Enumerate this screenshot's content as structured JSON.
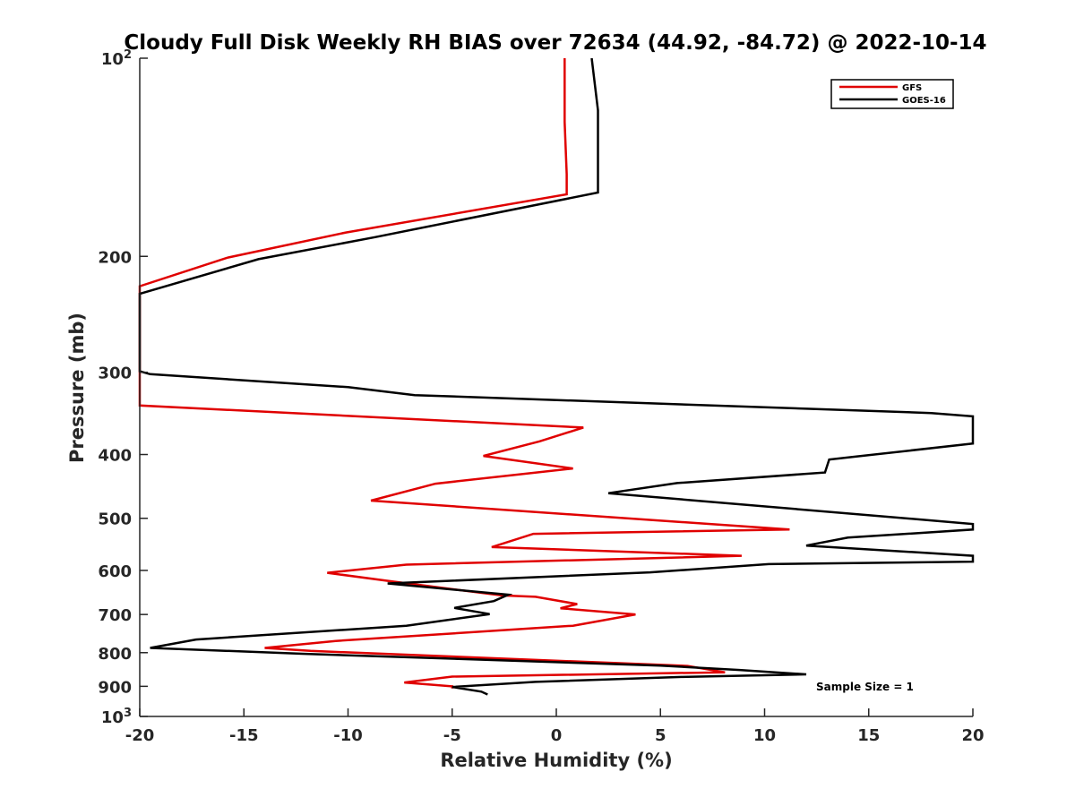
{
  "chart_data": {
    "type": "line",
    "title": "Cloudy Full Disk Weekly RH BIAS over 72634 (44.92, -84.72) @ 2022-10-14",
    "xlabel": "Relative Humidity (%)",
    "ylabel": "Pressure (mb)",
    "xlim": [
      -20,
      20
    ],
    "ylim": [
      100,
      1000
    ],
    "y_scale": "log",
    "y_reversed": true,
    "x_ticks": [
      "-20",
      "-15",
      "-10",
      "-5",
      "0",
      "5",
      "10",
      "15",
      "20"
    ],
    "y_ticks": [
      {
        "value": 100,
        "base": "10",
        "exp": "2"
      },
      {
        "value": 200,
        "label": "200"
      },
      {
        "value": 300,
        "label": "300"
      },
      {
        "value": 400,
        "label": "400"
      },
      {
        "value": 500,
        "label": "500"
      },
      {
        "value": 600,
        "label": "600"
      },
      {
        "value": 700,
        "label": "700"
      },
      {
        "value": 800,
        "label": "800"
      },
      {
        "value": 900,
        "label": "900"
      },
      {
        "value": 1000,
        "base": "10",
        "exp": "3"
      }
    ],
    "grid": false,
    "legend_position": "top-right",
    "series": [
      {
        "name": "GFS",
        "color": "#e00000",
        "points": [
          [
            0.4,
            100
          ],
          [
            0.4,
            125
          ],
          [
            0.5,
            150
          ],
          [
            0.5,
            161
          ],
          [
            -10.1,
            184
          ],
          [
            -15.8,
            201
          ],
          [
            -20.0,
            222
          ],
          [
            -20.0,
            337
          ],
          [
            1.3,
            364
          ],
          [
            -0.8,
            382
          ],
          [
            -3.5,
            402
          ],
          [
            0.8,
            420
          ],
          [
            -5.8,
            443
          ],
          [
            -8.9,
            470
          ],
          [
            11.2,
            520
          ],
          [
            -1.1,
            528
          ],
          [
            -3.1,
            553
          ],
          [
            8.9,
            570
          ],
          [
            -7.2,
            588
          ],
          [
            -11.0,
            605
          ],
          [
            -8.0,
            623
          ],
          [
            -2.6,
            655
          ],
          [
            -1.0,
            658
          ],
          [
            1.0,
            675
          ],
          [
            0.2,
            685
          ],
          [
            3.8,
            700
          ],
          [
            0.8,
            728
          ],
          [
            -10.6,
            768
          ],
          [
            -14.0,
            787
          ],
          [
            -11.8,
            795
          ],
          [
            6.3,
            838
          ],
          [
            8.1,
            857
          ],
          [
            -5.0,
            870
          ],
          [
            -7.3,
            888
          ],
          [
            -5.0,
            900
          ],
          [
            -5.0,
            907
          ]
        ]
      },
      {
        "name": "GOES-16",
        "color": "#000000",
        "points": [
          [
            1.7,
            100
          ],
          [
            2.0,
            120
          ],
          [
            2.0,
            150
          ],
          [
            2.0,
            160
          ],
          [
            -8.7,
            187
          ],
          [
            -14.3,
            202
          ],
          [
            -20.0,
            228
          ],
          [
            -20.0,
            299
          ],
          [
            -19.5,
            302
          ],
          [
            -10.0,
            316
          ],
          [
            -6.8,
            325
          ],
          [
            18.0,
            346
          ],
          [
            20.0,
            350
          ],
          [
            20.0,
            385
          ],
          [
            13.1,
            407
          ],
          [
            12.9,
            426
          ],
          [
            5.8,
            442
          ],
          [
            2.5,
            458
          ],
          [
            20.0,
            510
          ],
          [
            20.0,
            520
          ],
          [
            14.0,
            535
          ],
          [
            12.0,
            550
          ],
          [
            20.0,
            570
          ],
          [
            20.0,
            582
          ],
          [
            10.2,
            587
          ],
          [
            4.5,
            604
          ],
          [
            -8.1,
            628
          ],
          [
            -2.3,
            653
          ],
          [
            -3.0,
            668
          ],
          [
            -4.9,
            684
          ],
          [
            -3.2,
            699
          ],
          [
            -7.2,
            728
          ],
          [
            -17.3,
            764
          ],
          [
            -19.5,
            787
          ],
          [
            -12.2,
            803
          ],
          [
            5.0,
            837
          ],
          [
            8.8,
            850
          ],
          [
            12.0,
            863
          ],
          [
            6.0,
            871
          ],
          [
            -1.0,
            886
          ],
          [
            -5.0,
            902
          ],
          [
            -3.6,
            917
          ],
          [
            -3.3,
            926
          ]
        ]
      }
    ],
    "annotations": [
      "Sample Size = 1"
    ]
  }
}
